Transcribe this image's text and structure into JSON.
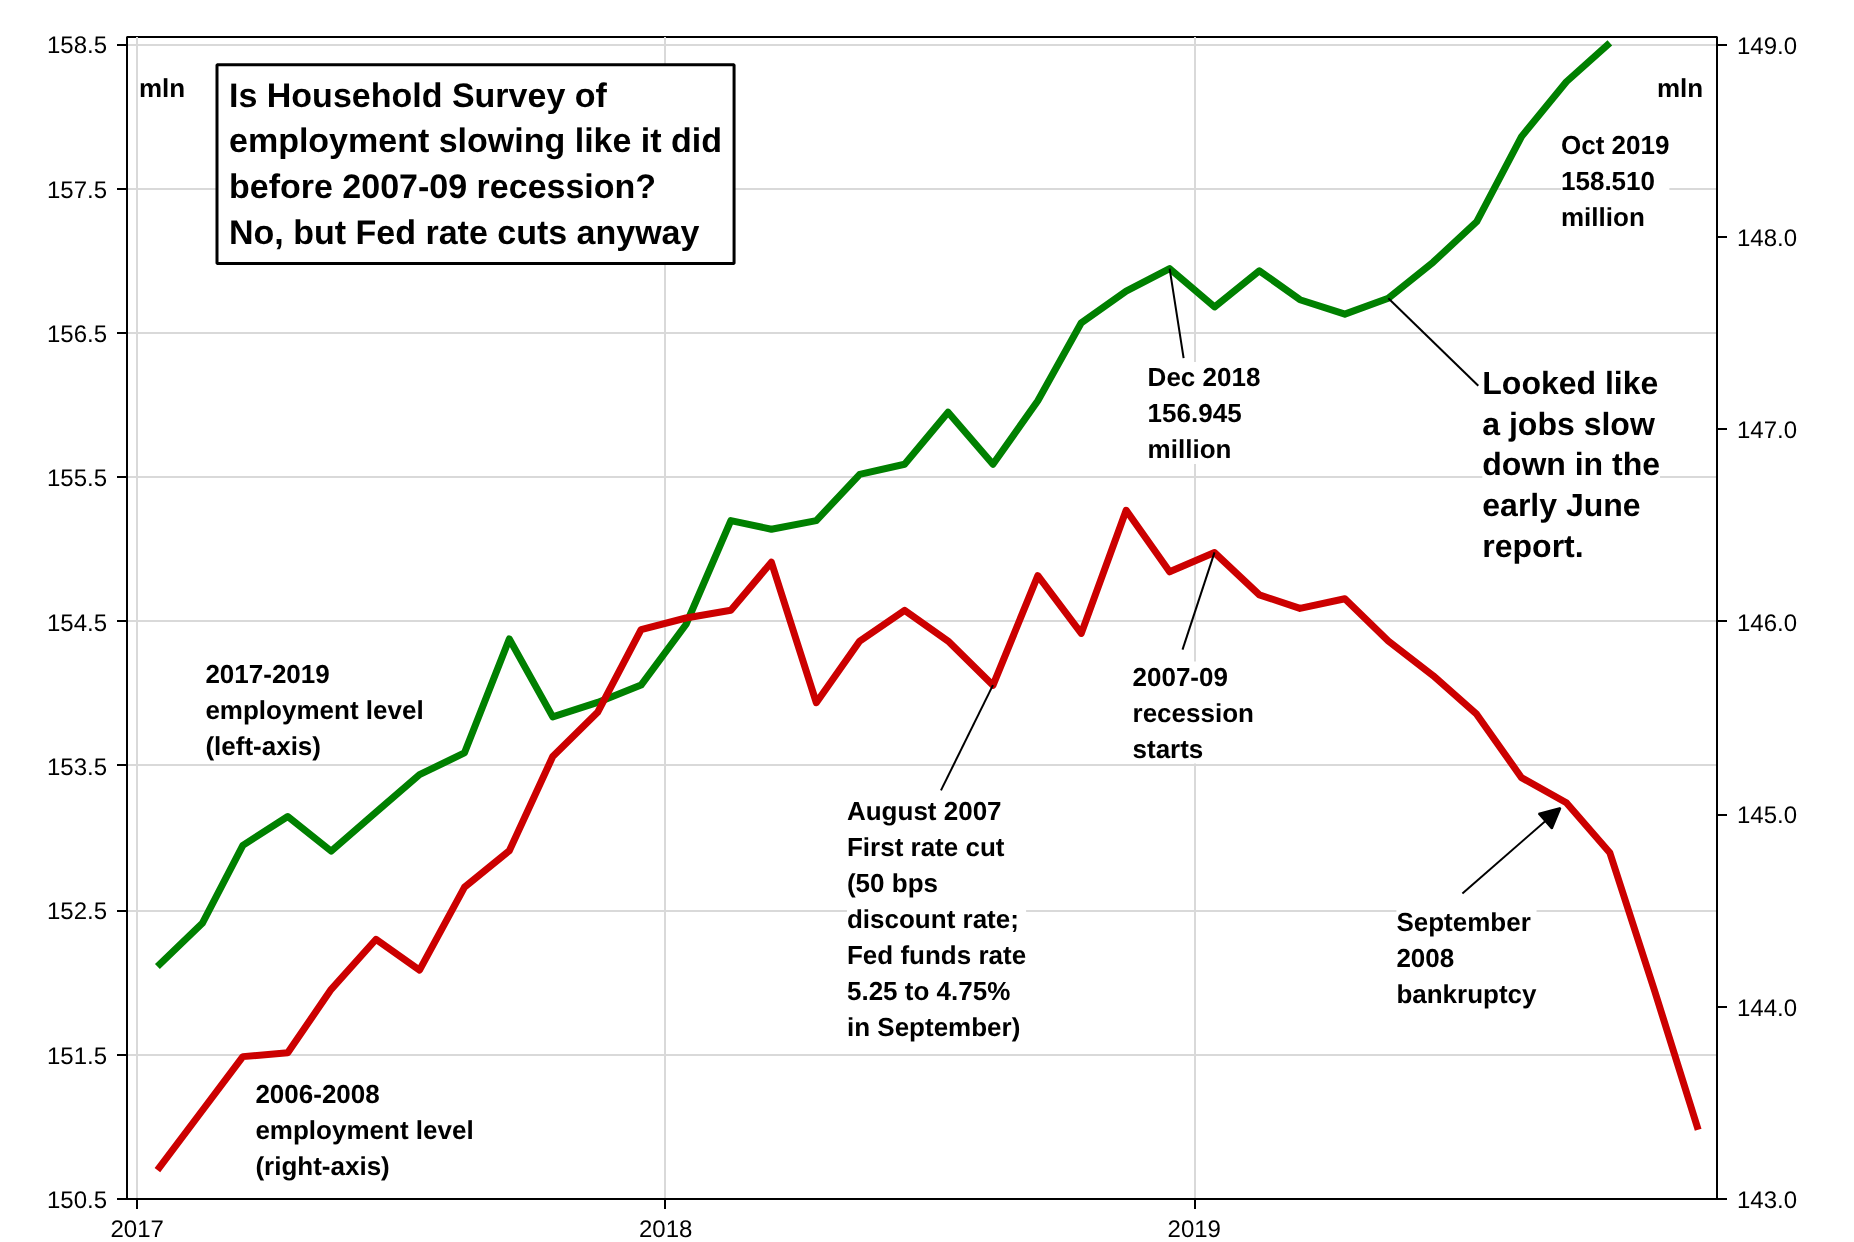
{
  "chart_data": {
    "type": "line",
    "title": "Is Household Survey of\nemployment slowing like it did\nbefore 2007-09 recession?",
    "subtitle": "No, but Fed rate cuts anyway",
    "ylabel": "mln",
    "y2label": "mln",
    "xlim": [
      "2016-12-25",
      "2019-12-28"
    ],
    "xticks": [
      "2017",
      "2018",
      "2019"
    ],
    "ylim": [
      150.5,
      158.55
    ],
    "yticks": [
      150.5,
      151.5,
      152.5,
      153.5,
      154.5,
      155.5,
      156.5,
      157.5,
      158.5
    ],
    "y2lim": [
      143,
      149.04
    ],
    "y2ticks": [
      {
        "value": 143,
        "label": "143.0"
      },
      {
        "value": 144,
        "label": "144.0"
      },
      {
        "value": 145,
        "label": "145.0"
      },
      {
        "value": 146,
        "label": "146.0"
      },
      {
        "value": 147,
        "label": "147.0"
      },
      {
        "value": 148,
        "label": "148.0"
      },
      {
        "value": 149,
        "label": "149.0"
      }
    ],
    "grid": true,
    "line_style": "solid",
    "marker": "none",
    "series": [
      {
        "name": "2017-2019\nemployment level\n(left-axis)",
        "color": "#008000",
        "x": [
          "2017-01-15",
          "2017-02-15",
          "2017-03-15",
          "2017-04-15",
          "2017-05-15",
          "2017-06-15",
          "2017-07-15",
          "2017-08-15",
          "2017-09-15",
          "2017-10-15",
          "2017-11-15",
          "2017-12-15",
          "2018-01-15",
          "2018-02-15",
          "2018-03-15",
          "2018-04-15",
          "2018-05-15",
          "2018-06-15",
          "2018-07-15",
          "2018-08-15",
          "2018-09-15",
          "2018-10-15",
          "2018-11-15",
          "2018-12-15",
          "2019-01-15",
          "2019-02-15",
          "2019-03-15",
          "2019-04-15",
          "2019-05-15",
          "2019-06-15",
          "2019-07-15",
          "2019-08-15",
          "2019-09-15",
          "2019-10-15"
        ],
        "values": [
          152.11,
          152.41,
          152.95,
          153.15,
          152.91,
          153.18,
          153.44,
          153.59,
          154.38,
          153.84,
          153.94,
          154.06,
          154.48,
          155.2,
          155.14,
          155.2,
          155.52,
          155.59,
          155.95,
          155.59,
          156.03,
          156.57,
          156.79,
          156.945,
          156.68,
          156.93,
          156.73,
          156.63,
          156.74,
          156.99,
          157.27,
          157.86,
          158.24,
          158.51
        ]
      },
      {
        "name": "2006-2008\nemployment level\n(right-axis)",
        "color": "#cc0000",
        "axis": "y2",
        "x": [
          "2017-01-15",
          "2017-02-15",
          "2017-03-15",
          "2017-04-15",
          "2017-05-15",
          "2017-06-15",
          "2017-07-15",
          "2017-08-15",
          "2017-09-15",
          "2017-10-15",
          "2017-11-15",
          "2017-12-15",
          "2018-01-15",
          "2018-02-15",
          "2018-03-15",
          "2018-04-15",
          "2018-05-15",
          "2018-06-15",
          "2018-07-15",
          "2018-08-15",
          "2018-09-15",
          "2018-10-15",
          "2018-11-15",
          "2018-12-15",
          "2019-01-15",
          "2019-02-15",
          "2019-03-15",
          "2019-04-15",
          "2019-05-15",
          "2019-06-15",
          "2019-07-15",
          "2019-08-15",
          "2019-09-15",
          "2019-10-15",
          "2019-11-15",
          "2019-12-15"
        ],
        "values": [
          143.15,
          143.46,
          143.74,
          143.76,
          144.09,
          144.35,
          144.19,
          144.62,
          144.81,
          145.3,
          145.53,
          145.96,
          146.02,
          146.06,
          146.31,
          145.58,
          145.9,
          146.06,
          145.9,
          145.67,
          146.24,
          145.94,
          146.58,
          146.26,
          146.36,
          146.14,
          146.07,
          146.12,
          145.9,
          145.72,
          145.52,
          145.19,
          145.06,
          144.8,
          144.08,
          143.36
        ]
      }
    ],
    "annotations": [
      {
        "text": "Dec 2018\n156.945\nmillion",
        "x": "2018-12-15",
        "y": 156.945
      },
      "Oct 2019\n158.510\nmillion",
      {
        "text": "Looked like\na jobs slow\ndown in the\nearly June\nreport.",
        "x": "2019-05-15",
        "y": 156.74
      },
      {
        "text": "2007-09\nrecession\nstarts",
        "x": "2019-01-15",
        "y": 154.98
      },
      {
        "text": "August 2007\nFirst rate cut\n(50 bps\ndiscount rate;\nFed funds rate\n5.25 to 4.75%\nin September)",
        "x": "2018-08-15",
        "y": 154.06
      },
      {
        "text": "September\n2008\nbankruptcy",
        "x": "2019-09-15",
        "y": 153.25
      }
    ]
  }
}
